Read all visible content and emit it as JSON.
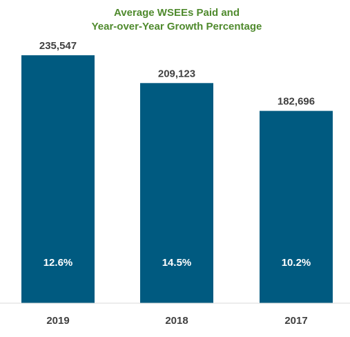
{
  "chart_data": {
    "type": "bar",
    "title_lines": [
      "Average WSEEs Paid and",
      "Year-over-Year  Growth Percentage"
    ],
    "categories": [
      "2019",
      "2018",
      "2017"
    ],
    "values": [
      235547,
      209123,
      182696
    ],
    "value_labels": [
      "235,547",
      "209,123",
      "182,696"
    ],
    "growth_labels": [
      "12.6%",
      "14.5%",
      "10.2%"
    ],
    "ylim": [
      0,
      250000
    ],
    "grid": false,
    "legend": "none",
    "xlabel": "",
    "ylabel": ""
  },
  "colors": {
    "bar": "#005a80",
    "title": "#4f8a2d",
    "value_label": "#404040",
    "growth_label": "#ffffff",
    "tick_label": "#404040",
    "axis": "#d9d9d9"
  }
}
